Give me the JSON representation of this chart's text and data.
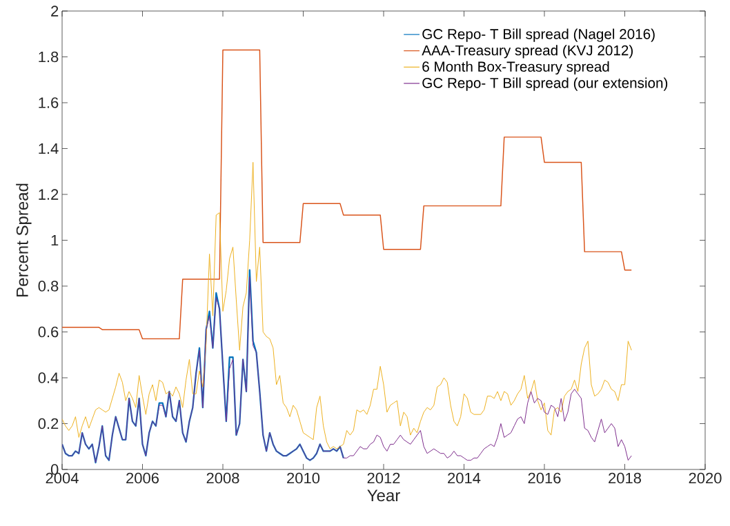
{
  "chart_data": {
    "type": "line",
    "xlabel": "Year",
    "ylabel": "Percent Spread",
    "xlim": [
      "2004",
      "2020"
    ],
    "ylim": [
      0,
      2
    ],
    "xticks": [
      "2004",
      "2006",
      "2008",
      "2010",
      "2012",
      "2014",
      "2016",
      "2018",
      "2020"
    ],
    "yticks": [
      0,
      0.2,
      0.4,
      0.6,
      0.8,
      1,
      1.2,
      1.4,
      1.6,
      1.8,
      2
    ],
    "legend": "top right",
    "x": [
      "2004-01",
      "2004-02",
      "2004-03",
      "2004-04",
      "2004-05",
      "2004-06",
      "2004-07",
      "2004-08",
      "2004-09",
      "2004-10",
      "2004-11",
      "2004-12",
      "2005-01",
      "2005-02",
      "2005-03",
      "2005-04",
      "2005-05",
      "2005-06",
      "2005-07",
      "2005-08",
      "2005-09",
      "2005-10",
      "2005-11",
      "2005-12",
      "2006-01",
      "2006-02",
      "2006-03",
      "2006-04",
      "2006-05",
      "2006-06",
      "2006-07",
      "2006-08",
      "2006-09",
      "2006-10",
      "2006-11",
      "2006-12",
      "2007-01",
      "2007-02",
      "2007-03",
      "2007-04",
      "2007-05",
      "2007-06",
      "2007-07",
      "2007-08",
      "2007-09",
      "2007-10",
      "2007-11",
      "2007-12",
      "2008-01",
      "2008-02",
      "2008-03",
      "2008-04",
      "2008-05",
      "2008-06",
      "2008-07",
      "2008-08",
      "2008-09",
      "2008-10",
      "2008-11",
      "2008-12",
      "2009-01",
      "2009-02",
      "2009-03",
      "2009-04",
      "2009-05",
      "2009-06",
      "2009-07",
      "2009-08",
      "2009-09",
      "2009-10",
      "2009-11",
      "2009-12",
      "2010-01",
      "2010-02",
      "2010-03",
      "2010-04",
      "2010-05",
      "2010-06",
      "2010-07",
      "2010-08",
      "2010-09",
      "2010-10",
      "2010-11",
      "2010-12",
      "2011-01",
      "2011-02",
      "2011-03",
      "2011-04",
      "2011-05",
      "2011-06",
      "2011-07",
      "2011-08",
      "2011-09",
      "2011-10",
      "2011-11",
      "2011-12",
      "2012-01",
      "2012-02",
      "2012-03",
      "2012-04",
      "2012-05",
      "2012-06",
      "2012-07",
      "2012-08",
      "2012-09",
      "2012-10",
      "2012-11",
      "2012-12",
      "2013-01",
      "2013-02",
      "2013-03",
      "2013-04",
      "2013-05",
      "2013-06",
      "2013-07",
      "2013-08",
      "2013-09",
      "2013-10",
      "2013-11",
      "2013-12",
      "2014-01",
      "2014-02",
      "2014-03",
      "2014-04",
      "2014-05",
      "2014-06",
      "2014-07",
      "2014-08",
      "2014-09",
      "2014-10",
      "2014-11",
      "2014-12",
      "2015-01",
      "2015-02",
      "2015-03",
      "2015-04",
      "2015-05",
      "2015-06",
      "2015-07",
      "2015-08",
      "2015-09",
      "2015-10",
      "2015-11",
      "2015-12",
      "2016-01",
      "2016-02",
      "2016-03",
      "2016-04",
      "2016-05",
      "2016-06",
      "2016-07",
      "2016-08",
      "2016-09",
      "2016-10",
      "2016-11",
      "2016-12",
      "2017-01",
      "2017-02",
      "2017-03",
      "2017-04",
      "2017-05",
      "2017-06",
      "2017-07",
      "2017-08",
      "2017-09",
      "2017-10",
      "2017-11",
      "2017-12",
      "2018-01",
      "2018-02",
      "2018-03"
    ],
    "series": [
      {
        "name": "GC Repo- T Bill spread (Nagel 2016)",
        "color": "#0072bd",
        "values": [
          0.11,
          0.07,
          0.06,
          0.06,
          0.08,
          0.07,
          0.16,
          0.11,
          0.09,
          0.11,
          0.03,
          0.1,
          0.19,
          0.06,
          0.04,
          0.15,
          0.23,
          0.18,
          0.13,
          0.13,
          0.31,
          0.21,
          0.19,
          0.31,
          0.11,
          0.06,
          0.16,
          0.21,
          0.19,
          0.29,
          0.29,
          0.23,
          0.34,
          0.23,
          0.21,
          0.3,
          0.16,
          0.12,
          0.21,
          0.27,
          0.42,
          0.53,
          0.27,
          0.61,
          0.69,
          0.53,
          0.77,
          0.7,
          0.45,
          0.21,
          0.49,
          0.49,
          0.15,
          0.2,
          0.48,
          0.34,
          0.87,
          0.56,
          0.51,
          0.34,
          0.15,
          0.08,
          0.16,
          0.11,
          0.08,
          0.07,
          0.06,
          0.06,
          0.07,
          0.08,
          0.09,
          0.11,
          0.08,
          0.05,
          0.04,
          0.05,
          0.07,
          0.11,
          0.08,
          0.08,
          0.08,
          0.09,
          0.08,
          0.1,
          0.05,
          null,
          null,
          null,
          null,
          null,
          null,
          null,
          null,
          null,
          null,
          null,
          null,
          null,
          null,
          null,
          null,
          null,
          null,
          null,
          null,
          null,
          null,
          null,
          null,
          null,
          null,
          null,
          null,
          null,
          null,
          null,
          null,
          null,
          null,
          null,
          null,
          null,
          null,
          null,
          null,
          null,
          null,
          null,
          null,
          null,
          null,
          null,
          null,
          null,
          null,
          null,
          null,
          null,
          null,
          null,
          null,
          null,
          null,
          null,
          null,
          null,
          null,
          null,
          null,
          null,
          null,
          null,
          null,
          null,
          null,
          null,
          null,
          null,
          null,
          null,
          null,
          null,
          null,
          null,
          null,
          null,
          null,
          null,
          null,
          null,
          null
        ]
      },
      {
        "name": "AAA-Treasury spread (KVJ 2012)",
        "color": "#d95319",
        "x": [
          "2004-01",
          "2004-12",
          "2005-01",
          "2005-12",
          "2006-01",
          "2006-12",
          "2007-01",
          "2007-12",
          "2008-01",
          "2008-12",
          "2009-01",
          "2009-12",
          "2010-01",
          "2010-12",
          "2011-01",
          "2011-12",
          "2012-01",
          "2012-12",
          "2013-01",
          "2014-12",
          "2015-01",
          "2015-12",
          "2016-01",
          "2016-12",
          "2017-01",
          "2017-12",
          "2018-01",
          "2018-03"
        ],
        "values": [
          0.62,
          0.62,
          0.61,
          0.61,
          0.57,
          0.57,
          0.83,
          0.83,
          1.83,
          1.83,
          0.99,
          0.99,
          1.16,
          1.16,
          1.11,
          1.11,
          0.96,
          0.96,
          1.15,
          1.15,
          1.45,
          1.45,
          1.34,
          1.34,
          0.95,
          0.95,
          0.87,
          0.87
        ]
      },
      {
        "name": "6 Month Box-Treasury spread",
        "color": "#edb120",
        "values": [
          0.22,
          0.19,
          0.17,
          0.19,
          0.23,
          0.14,
          0.19,
          0.23,
          0.18,
          0.22,
          0.26,
          0.27,
          0.26,
          0.25,
          0.26,
          0.31,
          0.36,
          0.42,
          0.38,
          0.3,
          0.34,
          0.31,
          0.27,
          0.41,
          0.32,
          0.24,
          0.33,
          0.37,
          0.3,
          0.39,
          0.38,
          0.33,
          0.34,
          0.32,
          0.36,
          0.33,
          0.27,
          0.39,
          0.48,
          0.33,
          0.33,
          0.43,
          0.36,
          0.55,
          0.94,
          0.67,
          1.11,
          1.12,
          0.69,
          0.78,
          0.92,
          0.97,
          0.74,
          0.52,
          0.71,
          0.77,
          1.0,
          1.34,
          0.82,
          0.97,
          0.6,
          0.58,
          0.57,
          0.53,
          0.37,
          0.41,
          0.29,
          0.27,
          0.23,
          0.28,
          0.26,
          0.21,
          0.16,
          0.15,
          0.14,
          0.13,
          0.27,
          0.32,
          0.19,
          0.12,
          0.09,
          0.1,
          0.09,
          0.1,
          0.11,
          0.17,
          0.15,
          0.17,
          0.26,
          0.25,
          0.26,
          0.24,
          0.28,
          0.35,
          0.35,
          0.45,
          0.37,
          0.25,
          0.28,
          0.29,
          0.3,
          0.19,
          0.25,
          0.23,
          0.15,
          0.18,
          0.16,
          0.21,
          0.25,
          0.27,
          0.26,
          0.28,
          0.36,
          0.37,
          0.4,
          0.38,
          0.28,
          0.21,
          0.19,
          0.23,
          0.33,
          0.31,
          0.25,
          0.24,
          0.24,
          0.24,
          0.26,
          0.32,
          0.32,
          0.31,
          0.34,
          0.3,
          0.34,
          0.33,
          0.28,
          0.3,
          0.33,
          0.35,
          0.41,
          0.31,
          0.34,
          0.39,
          0.3,
          0.26,
          0.29,
          0.17,
          0.15,
          0.26,
          0.27,
          0.25,
          0.32,
          0.34,
          0.35,
          0.39,
          0.34,
          0.46,
          0.53,
          0.56,
          0.37,
          0.32,
          0.33,
          0.35,
          0.39,
          0.38,
          0.35,
          0.34,
          0.3,
          0.37,
          0.37,
          0.56,
          0.52
        ]
      },
      {
        "name": "GC Repo- T Bill spread (our extension)",
        "color": "#7e2f8e",
        "values": [
          0.11,
          0.07,
          0.06,
          0.06,
          0.08,
          0.07,
          0.16,
          0.11,
          0.09,
          0.11,
          0.03,
          0.1,
          0.19,
          0.06,
          0.04,
          0.15,
          0.23,
          0.18,
          0.13,
          0.13,
          0.31,
          0.21,
          0.19,
          0.31,
          0.11,
          0.06,
          0.16,
          0.21,
          0.19,
          0.28,
          0.28,
          0.23,
          0.34,
          0.23,
          0.21,
          0.3,
          0.16,
          0.12,
          0.21,
          0.27,
          0.42,
          0.52,
          0.27,
          0.61,
          0.67,
          0.53,
          0.75,
          0.7,
          0.45,
          0.21,
          0.44,
          0.48,
          0.15,
          0.2,
          0.48,
          0.34,
          0.84,
          0.54,
          0.51,
          0.34,
          0.15,
          0.08,
          0.16,
          0.11,
          0.08,
          0.07,
          0.06,
          0.06,
          0.07,
          0.08,
          0.09,
          0.11,
          0.08,
          0.05,
          0.04,
          0.05,
          0.07,
          0.11,
          0.08,
          0.08,
          0.08,
          0.09,
          0.08,
          0.1,
          0.05,
          0.05,
          0.06,
          0.06,
          0.08,
          0.1,
          0.09,
          0.09,
          0.11,
          0.12,
          0.15,
          0.14,
          0.1,
          0.08,
          0.11,
          0.11,
          0.13,
          0.15,
          0.13,
          0.12,
          0.11,
          0.13,
          0.15,
          0.17,
          0.1,
          0.07,
          0.08,
          0.09,
          0.08,
          0.07,
          0.07,
          0.05,
          0.06,
          0.08,
          0.06,
          0.06,
          0.05,
          0.04,
          0.04,
          0.05,
          0.05,
          0.07,
          0.09,
          0.1,
          0.11,
          0.1,
          0.14,
          0.2,
          0.14,
          0.15,
          0.16,
          0.19,
          0.22,
          0.23,
          0.2,
          0.29,
          0.34,
          0.29,
          0.31,
          0.3,
          0.25,
          0.24,
          0.28,
          0.27,
          0.23,
          0.31,
          0.21,
          0.25,
          0.33,
          0.35,
          0.33,
          0.31,
          0.18,
          0.17,
          0.14,
          0.12,
          0.17,
          0.22,
          0.16,
          0.18,
          0.2,
          0.18,
          0.1,
          0.13,
          0.1,
          0.04,
          0.06
        ]
      }
    ]
  }
}
